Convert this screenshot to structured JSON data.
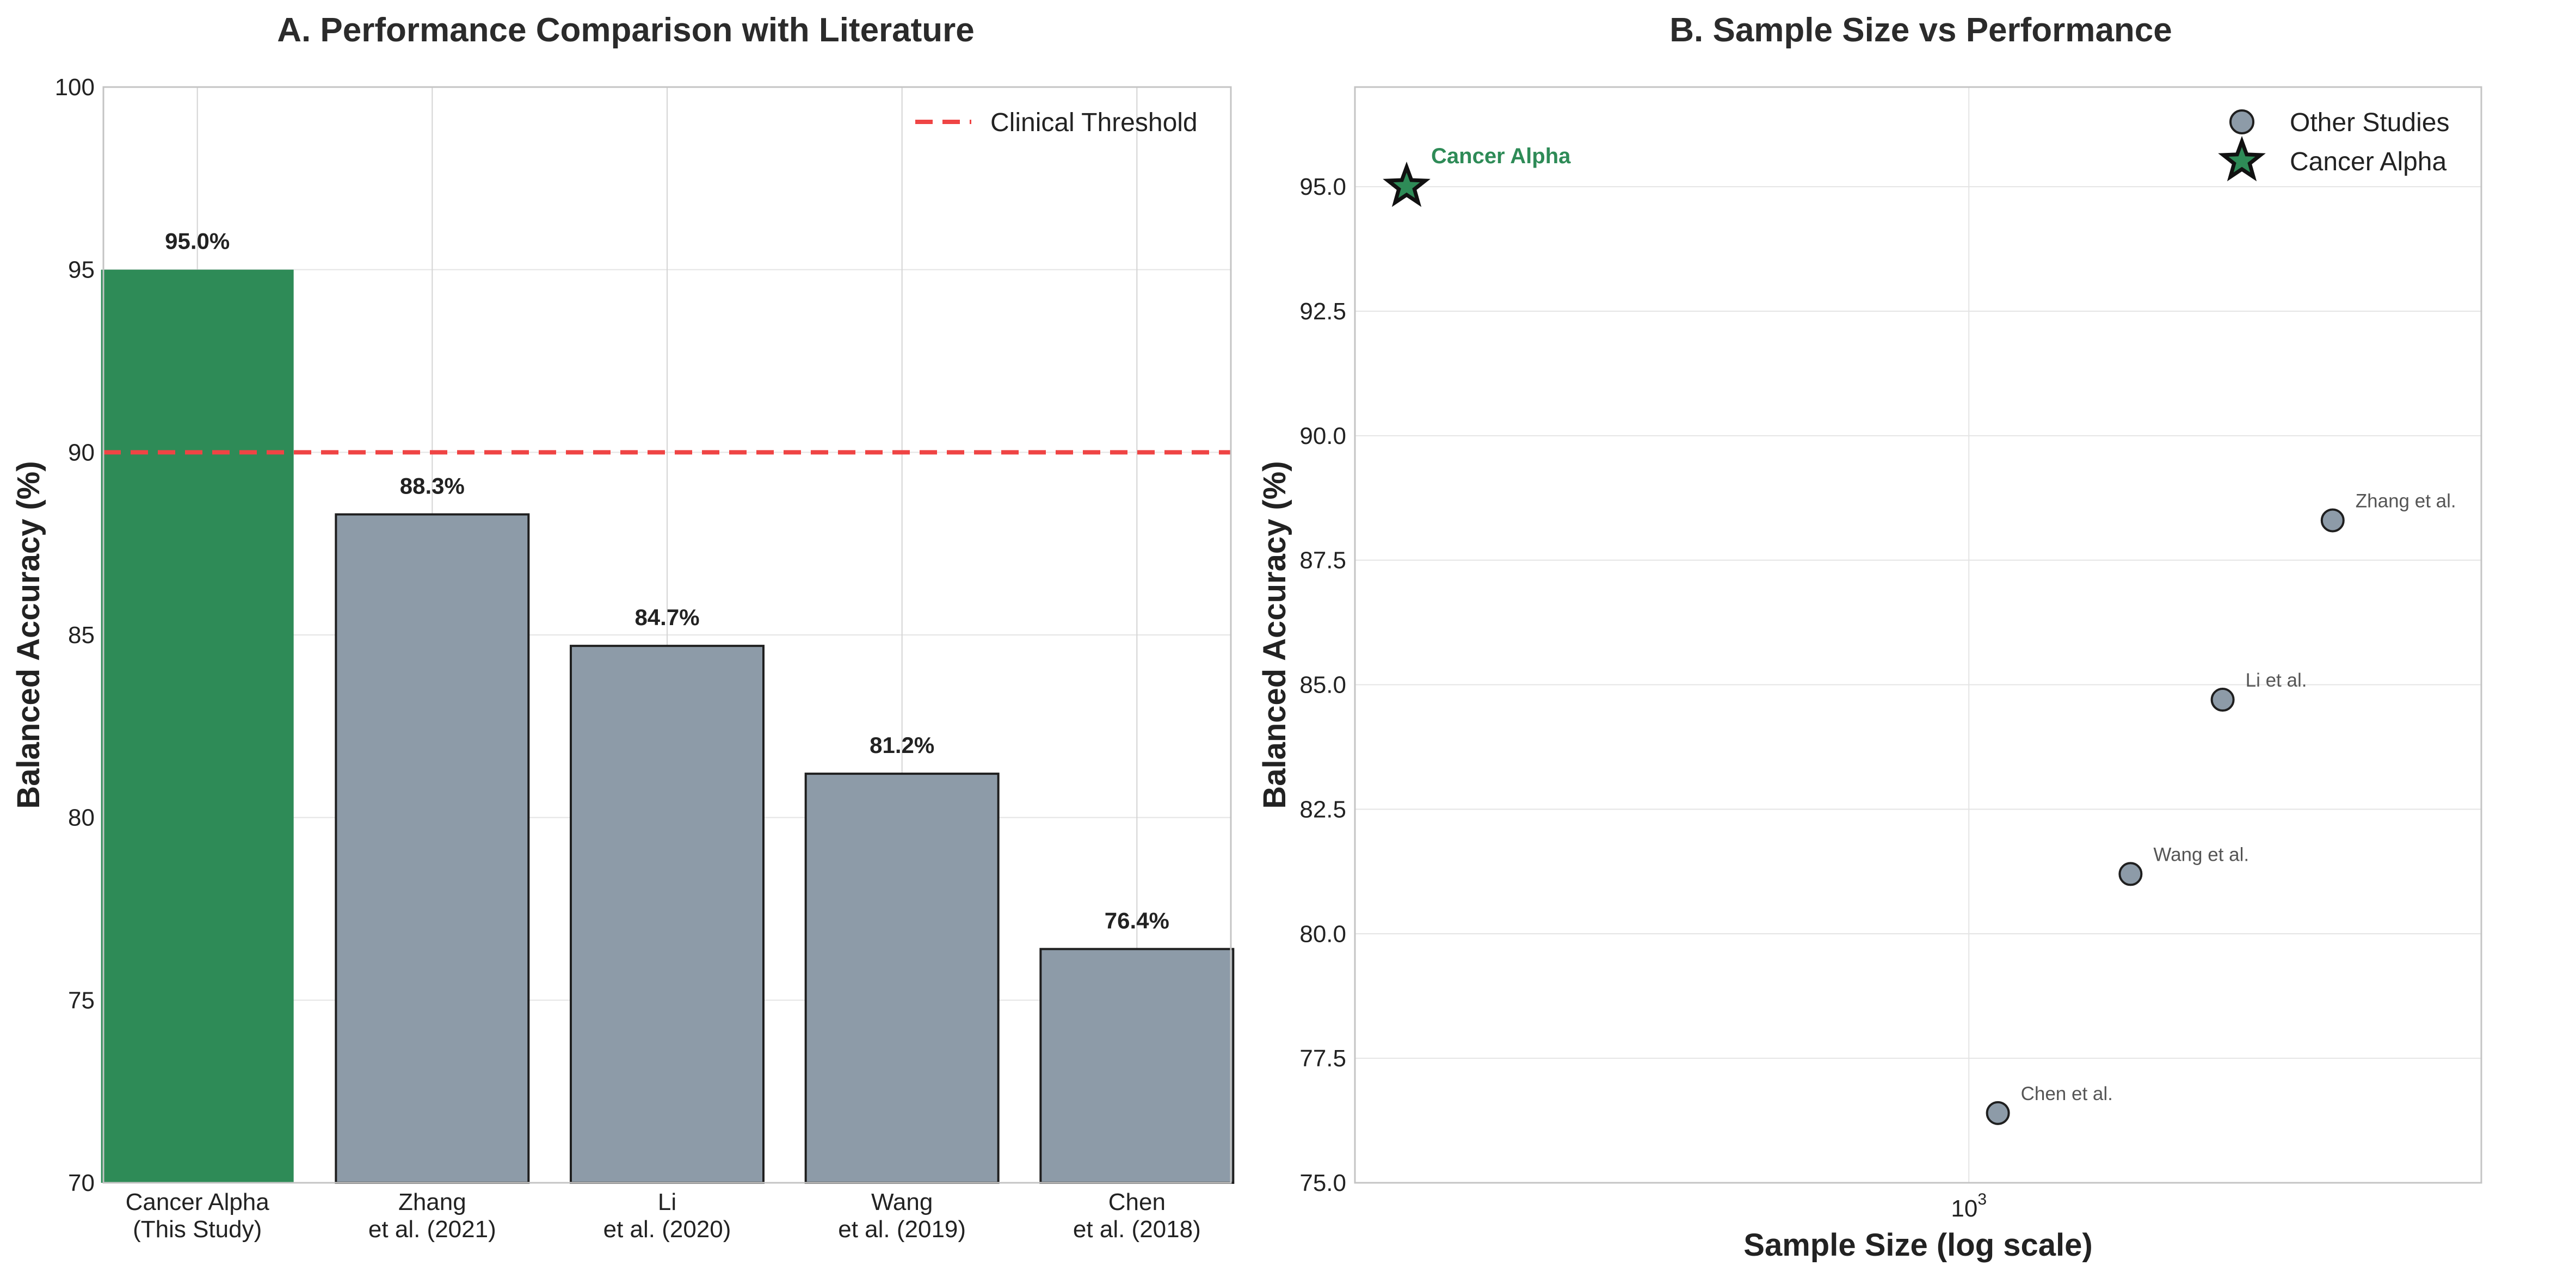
{
  "colors": {
    "highlight": "#2e8b57",
    "others": "#8d9ba8",
    "threshold": "#ef4444",
    "grid": "#e4e4e4",
    "frame": "#c4c4c4"
  },
  "chart_data": [
    {
      "type": "bar",
      "title": "A. Performance Comparison with Literature",
      "xlabel": "",
      "ylabel": "Balanced Accuracy (%)",
      "ylim": [
        70,
        100
      ],
      "yticks": [
        "70",
        "75",
        "80",
        "85",
        "90",
        "95",
        "100"
      ],
      "categories": [
        [
          "Cancer Alpha",
          "(This Study)"
        ],
        [
          "Zhang",
          "et al. (2021)"
        ],
        [
          "Li",
          "et al. (2020)"
        ],
        [
          "Wang",
          "et al. (2019)"
        ],
        [
          "Chen",
          "et al. (2018)"
        ]
      ],
      "values": [
        95.0,
        88.3,
        84.7,
        81.2,
        76.4
      ],
      "value_labels": [
        "95.0%",
        "88.3%",
        "84.7%",
        "81.2%",
        "76.4%"
      ],
      "highlight_index": 0,
      "threshold": {
        "value": 90,
        "label": "Clinical Threshold"
      },
      "legend": "top-right",
      "grid": true
    },
    {
      "type": "scatter",
      "title": "B. Sample Size vs Performance",
      "xlabel": "Sample Size (log scale)",
      "ylabel": "Balanced Accuracy (%)",
      "xscale": "log",
      "xlim": [
        158,
        10000
      ],
      "ylim": [
        75.0,
        97.0
      ],
      "xticks": [
        {
          "value": 1000,
          "base": "10",
          "exp": "3"
        }
      ],
      "yticks": [
        "75.0",
        "77.5",
        "80.0",
        "82.5",
        "85.0",
        "87.5",
        "90.0",
        "92.5",
        "95.0"
      ],
      "series": [
        {
          "name": "Other Studies",
          "marker": "circle",
          "points": [
            {
              "x": 1100,
              "y": 76.4,
              "label": "Chen et al."
            },
            {
              "x": 1700,
              "y": 81.2,
              "label": "Wang et al."
            },
            {
              "x": 2300,
              "y": 84.7,
              "label": "Li et al."
            },
            {
              "x": 3300,
              "y": 88.3,
              "label": "Zhang et al."
            }
          ]
        },
        {
          "name": "Cancer Alpha",
          "marker": "star",
          "points": [
            {
              "x": 158,
              "y": 95.0,
              "label": "Cancer Alpha"
            }
          ]
        }
      ],
      "legend": "top-right",
      "grid": true
    }
  ]
}
